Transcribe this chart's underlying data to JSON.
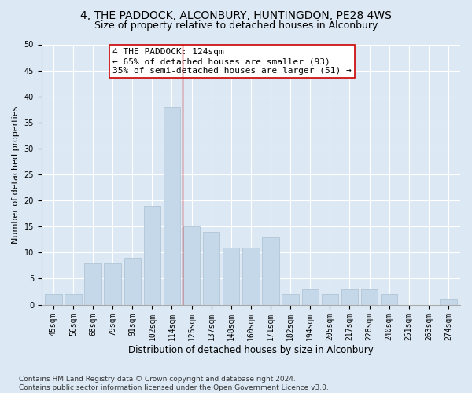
{
  "title1": "4, THE PADDOCK, ALCONBURY, HUNTINGDON, PE28 4WS",
  "title2": "Size of property relative to detached houses in Alconbury",
  "xlabel": "Distribution of detached houses by size in Alconbury",
  "ylabel": "Number of detached properties",
  "categories": [
    "45sqm",
    "56sqm",
    "68sqm",
    "79sqm",
    "91sqm",
    "102sqm",
    "114sqm",
    "125sqm",
    "137sqm",
    "148sqm",
    "160sqm",
    "171sqm",
    "182sqm",
    "194sqm",
    "205sqm",
    "217sqm",
    "228sqm",
    "240sqm",
    "251sqm",
    "263sqm",
    "274sqm"
  ],
  "values": [
    2,
    2,
    8,
    8,
    9,
    19,
    38,
    15,
    14,
    11,
    11,
    13,
    2,
    3,
    2,
    3,
    3,
    2,
    0,
    0,
    1
  ],
  "bar_color": "#c5d8ea",
  "bar_edge_color": "#aabfcf",
  "vline_x_index": 6.55,
  "vline_color": "#cc0000",
  "annotation_text": "4 THE PADDOCK: 124sqm\n← 65% of detached houses are smaller (93)\n35% of semi-detached houses are larger (51) →",
  "annotation_box_color": "#ffffff",
  "annotation_box_edge_color": "#cc0000",
  "ylim": [
    0,
    50
  ],
  "yticks": [
    0,
    5,
    10,
    15,
    20,
    25,
    30,
    35,
    40,
    45,
    50
  ],
  "bg_color": "#dce9f5",
  "plot_bg_color": "#dce9f5",
  "footnote": "Contains HM Land Registry data © Crown copyright and database right 2024.\nContains public sector information licensed under the Open Government Licence v3.0.",
  "title1_fontsize": 10,
  "title2_fontsize": 9,
  "xlabel_fontsize": 8.5,
  "ylabel_fontsize": 8,
  "tick_fontsize": 7,
  "annotation_fontsize": 8,
  "footnote_fontsize": 6.5
}
